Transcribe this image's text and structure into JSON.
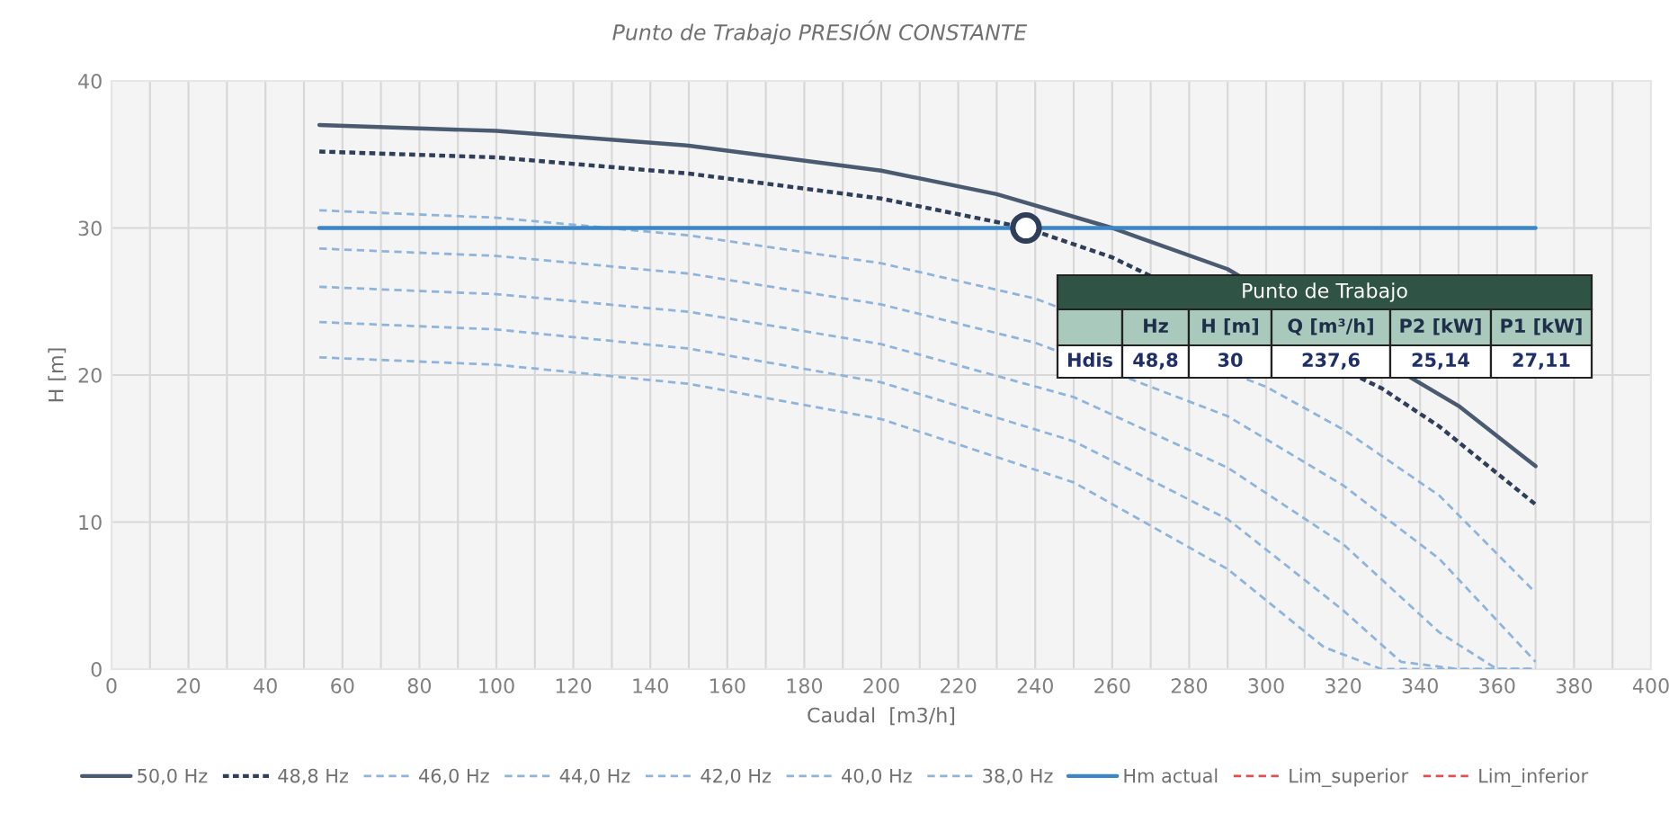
{
  "chart_data": {
    "type": "line",
    "title": "Punto de Trabajo PRESIÓN CONSTANTE",
    "xlabel": "Caudal  [m3/h]",
    "ylabel": "H [m]",
    "xlim": [
      0,
      400
    ],
    "ylim": [
      0,
      40
    ],
    "xticks": [
      0,
      {
        "value": 10,
        "label": null
      },
      20,
      {
        "value": 30,
        "label": null
      },
      40,
      {
        "value": 50,
        "label": null
      },
      60,
      {
        "value": 70,
        "label": null
      },
      80,
      {
        "value": 90,
        "label": null
      },
      100,
      {
        "value": 110,
        "label": null
      },
      120,
      {
        "value": 130,
        "label": null
      },
      140,
      {
        "value": 150,
        "label": null
      },
      160,
      {
        "value": 170,
        "label": null
      },
      180,
      {
        "value": 190,
        "label": null
      },
      200,
      {
        "value": 210,
        "label": null
      },
      220,
      {
        "value": 230,
        "label": null
      },
      240,
      {
        "value": 250,
        "label": null
      },
      260,
      {
        "value": 270,
        "label": null
      },
      280,
      {
        "value": 290,
        "label": null
      },
      300,
      {
        "value": 310,
        "label": null
      },
      320,
      {
        "value": 330,
        "label": null
      },
      340,
      {
        "value": 350,
        "label": null
      },
      360,
      {
        "value": 370,
        "label": null
      },
      380,
      {
        "value": 390,
        "label": null
      },
      400
    ],
    "yticks": [
      0,
      10,
      20,
      30,
      40
    ],
    "grid": true,
    "legend": "bottom",
    "series": [
      {
        "name": "50,0 Hz",
        "color": "#4a5a70",
        "line_style": "solid",
        "x": [
          54,
          100,
          150,
          200,
          230,
          260,
          290,
          350,
          370
        ],
        "values": [
          37.0,
          36.6,
          35.6,
          33.9,
          32.3,
          30.0,
          27.2,
          17.9,
          13.8
        ]
      },
      {
        "name": "48,8 Hz",
        "color": "#2f3f5a",
        "line_style": "dotted",
        "x": [
          54,
          100,
          150,
          200,
          237.6,
          260,
          330,
          345,
          370
        ],
        "values": [
          35.2,
          34.8,
          33.7,
          32.0,
          30.0,
          28.0,
          19.1,
          16.5,
          11.2
        ]
      },
      {
        "name": "46,0 Hz",
        "color": "#8fb4dc",
        "line_style": "dashed",
        "x": [
          54,
          100,
          150,
          200,
          240,
          300,
          320,
          345,
          370
        ],
        "values": [
          31.2,
          30.7,
          29.5,
          27.6,
          25.2,
          19.2,
          16.3,
          11.8,
          5.2
        ]
      },
      {
        "name": "44,0 Hz",
        "color": "#8fb4dc",
        "line_style": "dashed",
        "x": [
          54,
          100,
          150,
          200,
          240,
          290,
          320,
          345,
          370
        ],
        "values": [
          28.6,
          28.1,
          26.9,
          24.8,
          22.2,
          17.2,
          12.5,
          7.5,
          0.5
        ]
      },
      {
        "name": "42,0 Hz",
        "color": "#8fb4dc",
        "line_style": "dashed",
        "x": [
          54,
          100,
          150,
          200,
          250,
          290,
          320,
          345,
          360,
          370
        ],
        "values": [
          26.0,
          25.5,
          24.3,
          22.1,
          18.5,
          13.7,
          8.5,
          2.5,
          0,
          0
        ]
      },
      {
        "name": "40,0 Hz",
        "color": "#8fb4dc",
        "line_style": "dashed",
        "x": [
          54,
          100,
          150,
          200,
          250,
          290,
          320,
          335,
          350,
          370
        ],
        "values": [
          23.6,
          23.1,
          21.8,
          19.5,
          15.5,
          10.2,
          4.0,
          0.5,
          0,
          0
        ]
      },
      {
        "name": "38,0 Hz",
        "color": "#8fb4dc",
        "line_style": "dashed",
        "x": [
          54,
          100,
          150,
          200,
          250,
          290,
          315,
          330,
          370
        ],
        "values": [
          21.2,
          20.7,
          19.4,
          17.0,
          12.7,
          6.8,
          1.5,
          0,
          0
        ]
      },
      {
        "name": "Hm actual",
        "color": "#3a86c8",
        "line_style": "solid",
        "x": [
          54,
          370
        ],
        "values": [
          30,
          30
        ]
      },
      {
        "name": "Lim_superior",
        "color": "#e05050",
        "line_style": "dashed"
      },
      {
        "name": "Lim_inferior",
        "color": "#e05050",
        "line_style": "dashed"
      },
      {
        "type": "scatter",
        "marker": "circle",
        "color": "#2f3f5a",
        "x": [
          237.6
        ],
        "values": [
          30
        ]
      }
    ],
    "annotations": [
      "Punto de Trabajo",
      "Hz",
      "H [m]",
      "Q [m³/h]",
      "P2 [kW]",
      "P1 [kW]",
      "Hdis",
      "48,8",
      "30",
      "237,6",
      "25,14",
      "27,11"
    ]
  }
}
